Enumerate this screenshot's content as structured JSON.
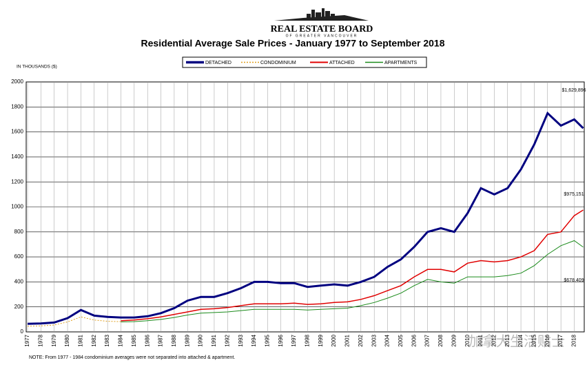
{
  "chart_data": {
    "type": "line",
    "logo_title": "REAL ESTATE BOARD",
    "logo_subtitle": "OF GREATER VANCOUVER",
    "title": "Residential Average Sale Prices  -  January 1977 to September 2018",
    "y_label": "IN THOUSANDS ($)",
    "note": "NOTE:  From 1977 - 1984 condominium averages were not separated into attached & apartment.",
    "watermark": "加拿大生活贴士",
    "x": [
      1977,
      1978,
      1979,
      1980,
      1981,
      1982,
      1983,
      1984,
      1985,
      1986,
      1987,
      1988,
      1989,
      1990,
      1991,
      1992,
      1993,
      1994,
      1995,
      1996,
      1997,
      1998,
      1999,
      2000,
      2001,
      2002,
      2003,
      2004,
      2005,
      2006,
      2007,
      2008,
      2009,
      2010,
      2011,
      2012,
      2013,
      2014,
      2015,
      2016,
      2017,
      2018,
      2018.67
    ],
    "series": [
      {
        "name": "DETACHED",
        "color": "#000080",
        "width": 3,
        "dash": false,
        "values": [
          65,
          68,
          75,
          110,
          175,
          130,
          120,
          115,
          115,
          125,
          150,
          190,
          250,
          280,
          280,
          310,
          350,
          400,
          400,
          390,
          390,
          360,
          370,
          380,
          370,
          400,
          440,
          520,
          580,
          680,
          800,
          830,
          800,
          950,
          1150,
          1100,
          1150,
          1300,
          1500,
          1750,
          1650,
          1700,
          1629.896
        ]
      },
      {
        "name": "CONDOMINIUM",
        "color": "#e0a020",
        "width": 1,
        "dash": true,
        "values": [
          45,
          48,
          55,
          80,
          120,
          95,
          85,
          82,
          null,
          null,
          null,
          null,
          null,
          null,
          null,
          null,
          null,
          null,
          null,
          null,
          null,
          null,
          null,
          null,
          null,
          null,
          null,
          null,
          null,
          null,
          null,
          null,
          null,
          null,
          null,
          null,
          null,
          null,
          null,
          null,
          null,
          null,
          null
        ]
      },
      {
        "name": "ATTACHED",
        "color": "#e00000",
        "width": 1.5,
        "dash": false,
        "values": [
          null,
          null,
          null,
          null,
          null,
          null,
          null,
          90,
          95,
          105,
          120,
          140,
          160,
          180,
          185,
          195,
          210,
          225,
          225,
          225,
          230,
          220,
          225,
          235,
          240,
          260,
          290,
          330,
          370,
          440,
          500,
          500,
          480,
          550,
          570,
          560,
          570,
          600,
          650,
          780,
          800,
          930,
          975.151
        ]
      },
      {
        "name": "APARTMENTS",
        "color": "#1a8a1a",
        "width": 1,
        "dash": false,
        "values": [
          null,
          null,
          null,
          null,
          null,
          null,
          null,
          80,
          82,
          90,
          100,
          115,
          135,
          150,
          155,
          160,
          170,
          180,
          180,
          180,
          180,
          175,
          180,
          185,
          190,
          210,
          235,
          270,
          310,
          370,
          420,
          400,
          390,
          440,
          440,
          440,
          450,
          470,
          530,
          620,
          690,
          730,
          678.409
        ]
      }
    ],
    "annotations": [
      "$1,629,896",
      "$975,151",
      "$678,409"
    ],
    "xlim": [
      1977,
      2018.75
    ],
    "xticks": [
      1977,
      1978,
      1979,
      1980,
      1981,
      1982,
      1983,
      1984,
      1985,
      1986,
      1987,
      1988,
      1989,
      1990,
      1991,
      1992,
      1993,
      1994,
      1995,
      1996,
      1997,
      1998,
      1999,
      2000,
      2001,
      2002,
      2003,
      2004,
      2005,
      2006,
      2007,
      2008,
      2009,
      2010,
      2011,
      2012,
      2013,
      2014,
      2015,
      2016,
      2017,
      2018
    ],
    "ylim": [
      0,
      2000
    ],
    "yticks": [
      0,
      200,
      400,
      600,
      800,
      1000,
      1200,
      1400,
      1600,
      1800,
      2000
    ],
    "grid": true
  }
}
